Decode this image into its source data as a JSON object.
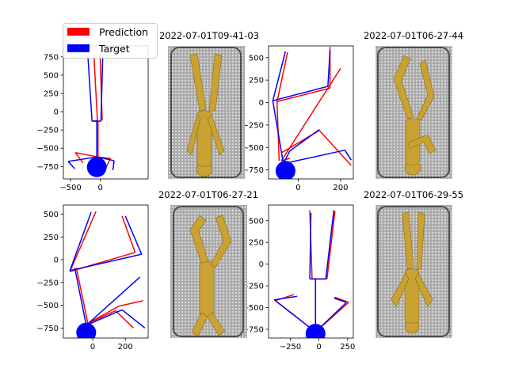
{
  "legend": {
    "items": [
      {
        "label": "Prediction",
        "color": "#ff0000"
      },
      {
        "label": "Target",
        "color": "#0000ff"
      }
    ]
  },
  "image_panels": [
    {
      "title": "2022-07-01T09-41-03"
    },
    {
      "title": "2022-07-01T06-27-44"
    },
    {
      "title": "2022-07-01T06-27-21"
    },
    {
      "title": "2022-07-01T06-29-55"
    }
  ],
  "chart_data": [
    {
      "type": "line",
      "xlim": [
        -620,
        800
      ],
      "ylim": [
        -920,
        900
      ],
      "xticks": [
        -500,
        0
      ],
      "yticks": [
        750,
        500,
        250,
        0,
        -250,
        -500,
        -750
      ],
      "grid": false,
      "series": [
        {
          "name": "Prediction",
          "color": "#ff0000",
          "segments": [
            [
              [
                -50,
                -120
              ],
              [
                -110,
                790
              ]
            ],
            [
              [
                -50,
                -120
              ],
              [
                -140,
                -130
              ]
            ],
            [
              [
                30,
                -120
              ],
              [
                -5,
                790
              ]
            ],
            [
              [
                -40,
                -620
              ],
              [
                -40,
                -120
              ]
            ],
            [
              [
                -40,
                -620
              ],
              [
                -420,
                -560
              ]
            ],
            [
              [
                -420,
                -560
              ],
              [
                -290,
                -700
              ]
            ],
            [
              [
                -40,
                -620
              ],
              [
                170,
                -640
              ]
            ],
            [
              [
                170,
                -640
              ],
              [
                90,
                -770
              ]
            ]
          ]
        },
        {
          "name": "Target",
          "color": "#0000ff",
          "segments": [
            [
              [
                -140,
                -130
              ],
              [
                -210,
                770
              ]
            ],
            [
              [
                -140,
                -130
              ],
              [
                10,
                -130
              ]
            ],
            [
              [
                10,
                -130
              ],
              [
                40,
                770
              ]
            ],
            [
              [
                -60,
                -620
              ],
              [
                -60,
                -130
              ]
            ],
            [
              [
                -60,
                -620
              ],
              [
                -540,
                -680
              ]
            ],
            [
              [
                -540,
                -680
              ],
              [
                -430,
                -780
              ]
            ],
            [
              [
                -60,
                -620
              ],
              [
                230,
                -670
              ]
            ],
            [
              [
                230,
                -670
              ],
              [
                210,
                -800
              ]
            ]
          ],
          "circle": {
            "x": -60,
            "y": -760
          }
        }
      ]
    },
    {
      "type": "line",
      "xlim": [
        -140,
        260
      ],
      "ylim": [
        -850,
        630
      ],
      "xticks": [
        0,
        200
      ],
      "yticks": [
        500,
        250,
        0,
        -250,
        -500,
        -750
      ],
      "grid": false,
      "series": [
        {
          "name": "Prediction",
          "color": "#ff0000",
          "segments": [
            [
              [
                -90,
                -650
              ],
              [
                -100,
                10
              ]
            ],
            [
              [
                -100,
                10
              ],
              [
                -50,
                560
              ]
            ],
            [
              [
                -100,
                10
              ],
              [
                150,
                160
              ]
            ],
            [
              [
                150,
                160
              ],
              [
                150,
                620
              ]
            ],
            [
              [
                -80,
                -650
              ],
              [
                200,
                380
              ]
            ],
            [
              [
                -80,
                -650
              ],
              [
                -40,
                -620
              ]
            ],
            [
              [
                -80,
                -560
              ],
              [
                100,
                -310
              ]
            ],
            [
              [
                100,
                -310
              ],
              [
                250,
                -700
              ]
            ]
          ]
        },
        {
          "name": "Target",
          "color": "#0000ff",
          "segments": [
            [
              [
                -70,
                -680
              ],
              [
                -120,
                20
              ]
            ],
            [
              [
                -120,
                20
              ],
              [
                -60,
                570
              ]
            ],
            [
              [
                -120,
                20
              ],
              [
                140,
                180
              ]
            ],
            [
              [
                140,
                180
              ],
              [
                150,
                580
              ]
            ],
            [
              [
                -70,
                -680
              ],
              [
                -40,
                -540
              ]
            ],
            [
              [
                -40,
                -540
              ],
              [
                100,
                -300
              ]
            ],
            [
              [
                -70,
                -680
              ],
              [
                220,
                -530
              ]
            ],
            [
              [
                220,
                -530
              ],
              [
                250,
                -640
              ]
            ]
          ],
          "circle": {
            "x": -60,
            "y": -760
          }
        }
      ]
    },
    {
      "type": "line",
      "xlim": [
        -180,
        340
      ],
      "ylim": [
        -860,
        600
      ],
      "xticks": [
        0,
        200
      ],
      "yticks": [
        500,
        250,
        0,
        -250,
        -500,
        -750
      ],
      "grid": false,
      "series": [
        {
          "name": "Prediction",
          "color": "#ff0000",
          "segments": [
            [
              [
                -140,
                -130
              ],
              [
                20,
                530
              ]
            ],
            [
              [
                -140,
                -130
              ],
              [
                260,
                80
              ]
            ],
            [
              [
                260,
                80
              ],
              [
                180,
                480
              ]
            ],
            [
              [
                -30,
                -700
              ],
              [
                -100,
                -90
              ]
            ],
            [
              [
                -30,
                -700
              ],
              [
                160,
                -510
              ]
            ],
            [
              [
                160,
                -510
              ],
              [
                310,
                -450
              ]
            ],
            [
              [
                -30,
                -700
              ],
              [
                140,
                -560
              ]
            ],
            [
              [
                140,
                -560
              ],
              [
                250,
                -750
              ]
            ]
          ]
        },
        {
          "name": "Target",
          "color": "#0000ff",
          "segments": [
            [
              [
                -140,
                -120
              ],
              [
                -10,
                520
              ]
            ],
            [
              [
                -140,
                -120
              ],
              [
                300,
                60
              ]
            ],
            [
              [
                300,
                60
              ],
              [
                200,
                480
              ]
            ],
            [
              [
                -40,
                -720
              ],
              [
                -110,
                -90
              ]
            ],
            [
              [
                -40,
                -720
              ],
              [
                180,
                -550
              ]
            ],
            [
              [
                180,
                -550
              ],
              [
                320,
                -750
              ]
            ],
            [
              [
                -40,
                -720
              ],
              [
                290,
                -190
              ]
            ]
          ],
          "circle": {
            "x": -40,
            "y": -800
          }
        }
      ]
    },
    {
      "type": "line",
      "xlim": [
        -440,
        300
      ],
      "ylim": [
        -850,
        680
      ],
      "xticks": [
        -250,
        0,
        250
      ],
      "yticks": [
        500,
        250,
        0,
        -250,
        -500,
        -750
      ],
      "grid": false,
      "series": [
        {
          "name": "Prediction",
          "color": "#ff0000",
          "segments": [
            [
              [
                -60,
                -170
              ],
              [
                -80,
                620
              ]
            ],
            [
              [
                -60,
                -170
              ],
              [
                70,
                -170
              ]
            ],
            [
              [
                70,
                -170
              ],
              [
                140,
                610
              ]
            ],
            [
              [
                -30,
                -780
              ],
              [
                -30,
                -170
              ]
            ],
            [
              [
                -30,
                -780
              ],
              [
                -380,
                -420
              ]
            ],
            [
              [
                -380,
                -420
              ],
              [
                -220,
                -350
              ]
            ],
            [
              [
                -30,
                -780
              ],
              [
                260,
                -440
              ]
            ],
            [
              [
                260,
                -440
              ],
              [
                140,
                -380
              ]
            ]
          ]
        },
        {
          "name": "Target",
          "color": "#0000ff",
          "segments": [
            [
              [
                -80,
                -170
              ],
              [
                -70,
                590
              ]
            ],
            [
              [
                -80,
                -170
              ],
              [
                60,
                -170
              ]
            ],
            [
              [
                60,
                -170
              ],
              [
                130,
                620
              ]
            ],
            [
              [
                -30,
                -780
              ],
              [
                -30,
                -170
              ]
            ],
            [
              [
                -30,
                -780
              ],
              [
                -390,
                -410
              ]
            ],
            [
              [
                -390,
                -410
              ],
              [
                -190,
                -370
              ]
            ],
            [
              [
                -30,
                -780
              ],
              [
                240,
                -440
              ]
            ],
            [
              [
                240,
                -440
              ],
              [
                130,
                -390
              ]
            ]
          ],
          "circle": {
            "x": -30,
            "y": -800
          }
        }
      ]
    }
  ]
}
